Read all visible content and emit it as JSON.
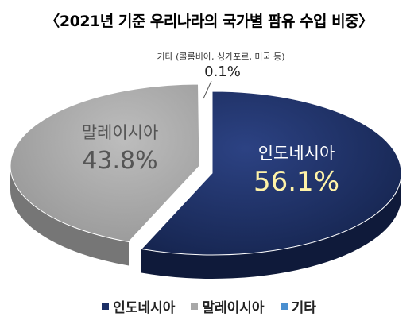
{
  "chart_data": {
    "type": "pie",
    "title": "〈2021년 기준 우리나라의 국가별 팜유 수입 비중〉",
    "unit": "%",
    "slices": [
      {
        "label": "인도네시아",
        "value": 56.1,
        "value_label": "56.1%",
        "color": "#1c2f66",
        "label_color": "#ffffff",
        "value_color": "#fff3a8"
      },
      {
        "label": "말레이시아",
        "value": 43.8,
        "value_label": "43.8%",
        "color": "#a8a8a8",
        "label_color": "#555555",
        "value_color": "#555555"
      },
      {
        "label": "기타",
        "value": 0.1,
        "value_label": "0.1%",
        "color": "#4a8fd0",
        "callout_label": "기타 (콜롬비아, 싱가포르, 미국 등)"
      }
    ],
    "legend": {
      "position": "bottom",
      "items": [
        "인도네시아",
        "말레이시아",
        "기타"
      ]
    }
  }
}
